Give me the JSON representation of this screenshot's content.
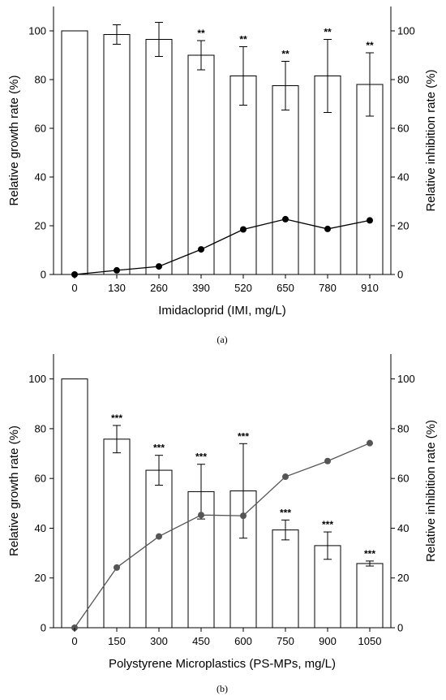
{
  "chart_data": [
    {
      "panel": "(a)",
      "type": "bar",
      "xlabel": "Imidacloprid (IMI, mg/L)",
      "ylabel": "Relative growth rate (%)",
      "y2label": "Relative inhibition rate (%)",
      "ylim": [
        0,
        110
      ],
      "y2lim": [
        0,
        110
      ],
      "yticks": [
        0,
        20,
        40,
        60,
        80,
        100
      ],
      "grid": false,
      "categories": [
        "0",
        "130",
        "260",
        "390",
        "520",
        "650",
        "780",
        "910"
      ],
      "series": [
        {
          "kind": "bar",
          "axis": "left",
          "values": [
            100,
            98.5,
            96.5,
            90,
            81.5,
            77.5,
            81.5,
            78
          ],
          "error": [
            0,
            4,
            7,
            6,
            12,
            10,
            15,
            13
          ],
          "significance": [
            "",
            "",
            "",
            "**",
            "**",
            "**",
            "**",
            "**"
          ]
        },
        {
          "kind": "line",
          "axis": "right",
          "color": "#000000",
          "values": [
            0,
            1.7,
            3.3,
            10.3,
            18.5,
            22.7,
            18.7,
            22.2
          ]
        }
      ]
    },
    {
      "panel": "(b)",
      "type": "bar",
      "xlabel": "Polystyrene Microplastics (PS-MPs, mg/L)",
      "ylabel": "Relative growth rate (%)",
      "y2label": "Relative inhibition rate (%)",
      "ylim": [
        0,
        110
      ],
      "y2lim": [
        0,
        110
      ],
      "yticks": [
        0,
        20,
        40,
        60,
        80,
        100
      ],
      "grid": false,
      "categories": [
        "0",
        "150",
        "300",
        "450",
        "600",
        "750",
        "900",
        "1050"
      ],
      "series": [
        {
          "kind": "bar",
          "axis": "left",
          "values": [
            100,
            75.8,
            63.3,
            54.7,
            55,
            39.3,
            33,
            25.8
          ],
          "error": [
            0,
            5.5,
            6,
            11,
            19,
            4,
            5.5,
            1
          ],
          "significance": [
            "",
            "***",
            "***",
            "***",
            "***",
            "***",
            "***",
            "***"
          ]
        },
        {
          "kind": "line",
          "axis": "right",
          "color": "#555555",
          "values": [
            0,
            24.2,
            36.7,
            45.3,
            45,
            60.7,
            67,
            74.2
          ]
        }
      ]
    }
  ]
}
